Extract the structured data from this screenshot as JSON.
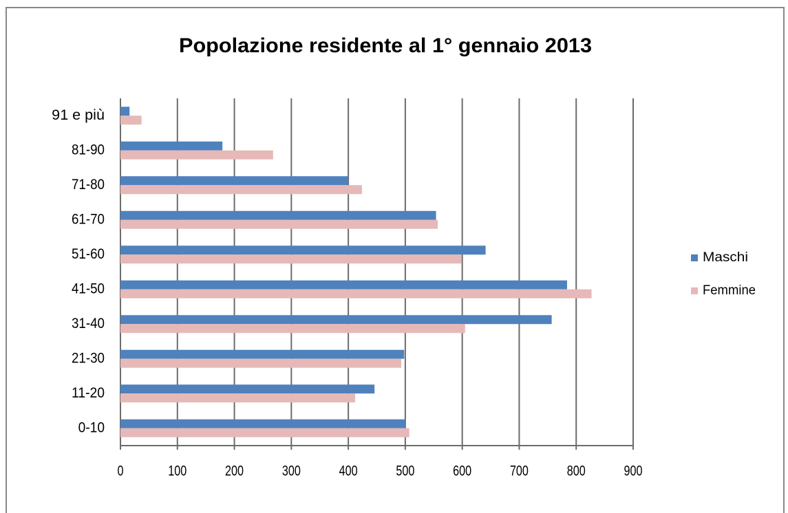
{
  "chart_data": {
    "type": "hbar",
    "title": "Popolazione residente al 1° gennaio 2013",
    "categories": [
      "0-10",
      "11-20",
      "21-30",
      "31-40",
      "41-50",
      "51-60",
      "61-70",
      "71-80",
      "81-90",
      "91 e più"
    ],
    "series": [
      {
        "name": "Maschi",
        "color": "#4f81bd",
        "values": [
          500,
          446,
          498,
          757,
          784,
          641,
          554,
          400,
          179,
          16
        ]
      },
      {
        "name": "Femmine",
        "color": "#e6b9b8",
        "values": [
          507,
          412,
          493,
          605,
          827,
          599,
          557,
          424,
          268,
          37
        ]
      }
    ],
    "xlim": [
      0,
      900
    ],
    "xticks": [
      0,
      100,
      200,
      300,
      400,
      500,
      600,
      700,
      800,
      900
    ],
    "grid": true,
    "legend": "right"
  }
}
